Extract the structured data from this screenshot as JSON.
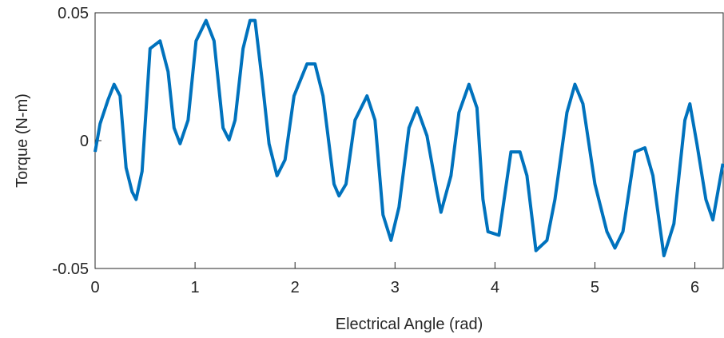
{
  "chart_data": {
    "type": "line",
    "xlabel": "Electrical Angle (rad)",
    "ylabel": "Torque (N-m)",
    "x": [
      0,
      0.05,
      0.13,
      0.19,
      0.25,
      0.31,
      0.37,
      0.41,
      0.47,
      0.55,
      0.65,
      0.73,
      0.79,
      0.85,
      0.93,
      1.01,
      1.11,
      1.19,
      1.28,
      1.34,
      1.4,
      1.48,
      1.55,
      1.6,
      1.67,
      1.74,
      1.82,
      1.9,
      1.99,
      2.12,
      2.2,
      2.28,
      2.39,
      2.44,
      2.51,
      2.6,
      2.72,
      2.8,
      2.88,
      2.96,
      3.04,
      3.14,
      3.22,
      3.32,
      3.42,
      3.46,
      3.56,
      3.64,
      3.74,
      3.82,
      3.88,
      3.93,
      4.04,
      4.16,
      4.25,
      4.32,
      4.41,
      4.52,
      4.6,
      4.72,
      4.8,
      4.88,
      5.0,
      5.12,
      5.2,
      5.28,
      5.4,
      5.5,
      5.58,
      5.69,
      5.79,
      5.9,
      5.95,
      6.02,
      6.11,
      6.18,
      6.28
    ],
    "series": [
      {
        "color": "#0072bd",
        "values": [
          -0.0044,
          0.0066,
          0.016,
          0.022,
          0.0175,
          -0.0106,
          -0.02,
          -0.023,
          -0.012,
          0.036,
          0.039,
          0.027,
          0.005,
          -0.0012,
          0.008,
          0.039,
          0.047,
          0.039,
          0.005,
          0.0003,
          0.008,
          0.036,
          0.047,
          0.047,
          0.024,
          -0.0012,
          -0.0137,
          -0.0075,
          0.0175,
          0.03,
          0.03,
          0.0175,
          -0.017,
          -0.0216,
          -0.017,
          0.008,
          0.0175,
          0.008,
          -0.029,
          -0.039,
          -0.026,
          0.005,
          0.0128,
          0.0019,
          -0.02,
          -0.028,
          -0.0137,
          0.011,
          0.022,
          0.0128,
          -0.023,
          -0.0356,
          -0.037,
          -0.0044,
          -0.0044,
          -0.0137,
          -0.043,
          -0.039,
          -0.023,
          0.011,
          0.022,
          0.0144,
          -0.017,
          -0.0356,
          -0.042,
          -0.0356,
          -0.0044,
          -0.0028,
          -0.0137,
          -0.045,
          -0.0325,
          0.008,
          0.0144,
          -0.0012,
          -0.023,
          -0.031,
          -0.009
        ]
      }
    ],
    "xlim": [
      0,
      6.2832
    ],
    "xticks": [
      0,
      1,
      2,
      3,
      4,
      5,
      6
    ],
    "ylim": [
      -0.05,
      0.05
    ],
    "yticks": [
      -0.05,
      0,
      0.05
    ]
  }
}
